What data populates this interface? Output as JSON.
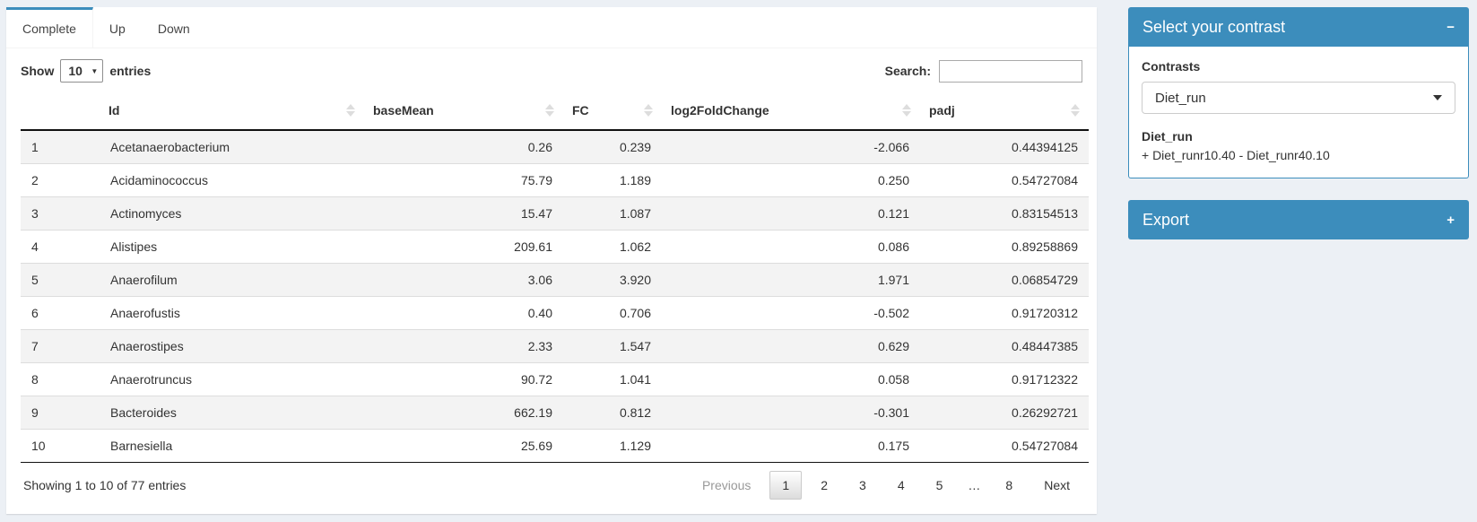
{
  "tabs": [
    {
      "label": "Complete",
      "active": true
    },
    {
      "label": "Up",
      "active": false
    },
    {
      "label": "Down",
      "active": false
    }
  ],
  "controls": {
    "show_label": "Show",
    "page_length": "10",
    "entries_label": "entries",
    "search_label": "Search:",
    "search_value": ""
  },
  "table": {
    "columns": [
      {
        "label": "",
        "align": "left",
        "sortable": false
      },
      {
        "label": "Id",
        "align": "left",
        "sortable": true
      },
      {
        "label": "baseMean",
        "align": "right",
        "sortable": true
      },
      {
        "label": "FC",
        "align": "right",
        "sortable": true
      },
      {
        "label": "log2FoldChange",
        "align": "right",
        "sortable": true
      },
      {
        "label": "padj",
        "align": "right",
        "sortable": true
      }
    ],
    "rows": [
      [
        "1",
        "Acetanaerobacterium",
        "0.26",
        "0.239",
        "-2.066",
        "0.44394125"
      ],
      [
        "2",
        "Acidaminococcus",
        "75.79",
        "1.189",
        "0.250",
        "0.54727084"
      ],
      [
        "3",
        "Actinomyces",
        "15.47",
        "1.087",
        "0.121",
        "0.83154513"
      ],
      [
        "4",
        "Alistipes",
        "209.61",
        "1.062",
        "0.086",
        "0.89258869"
      ],
      [
        "5",
        "Anaerofilum",
        "3.06",
        "3.920",
        "1.971",
        "0.06854729"
      ],
      [
        "6",
        "Anaerofustis",
        "0.40",
        "0.706",
        "-0.502",
        "0.91720312"
      ],
      [
        "7",
        "Anaerostipes",
        "2.33",
        "1.547",
        "0.629",
        "0.48447385"
      ],
      [
        "8",
        "Anaerotruncus",
        "90.72",
        "1.041",
        "0.058",
        "0.91712322"
      ],
      [
        "9",
        "Bacteroides",
        "662.19",
        "0.812",
        "-0.301",
        "0.26292721"
      ],
      [
        "10",
        "Barnesiella",
        "25.69",
        "1.129",
        "0.175",
        "0.54727084"
      ]
    ]
  },
  "footer": {
    "info": "Showing 1 to 10 of 77 entries",
    "pagination": [
      {
        "label": "Previous",
        "type": "disabled"
      },
      {
        "label": "1",
        "type": "current"
      },
      {
        "label": "2",
        "type": "page"
      },
      {
        "label": "3",
        "type": "page"
      },
      {
        "label": "4",
        "type": "page"
      },
      {
        "label": "5",
        "type": "page"
      },
      {
        "label": "…",
        "type": "ellipsis"
      },
      {
        "label": "8",
        "type": "page"
      },
      {
        "label": "Next",
        "type": "page"
      }
    ]
  },
  "contrast_box": {
    "title": "Select your contrast",
    "collapse_icon": "−",
    "contrasts_label": "Contrasts",
    "selected_contrast": "Diet_run",
    "contrast_name": "Diet_run",
    "contrast_formula": "+ Diet_runr10.40 - Diet_runr40.10"
  },
  "export_box": {
    "title": "Export",
    "expand_icon": "+"
  },
  "colors": {
    "primary": "#3c8dbc",
    "page_bg": "#ecf0f5"
  }
}
